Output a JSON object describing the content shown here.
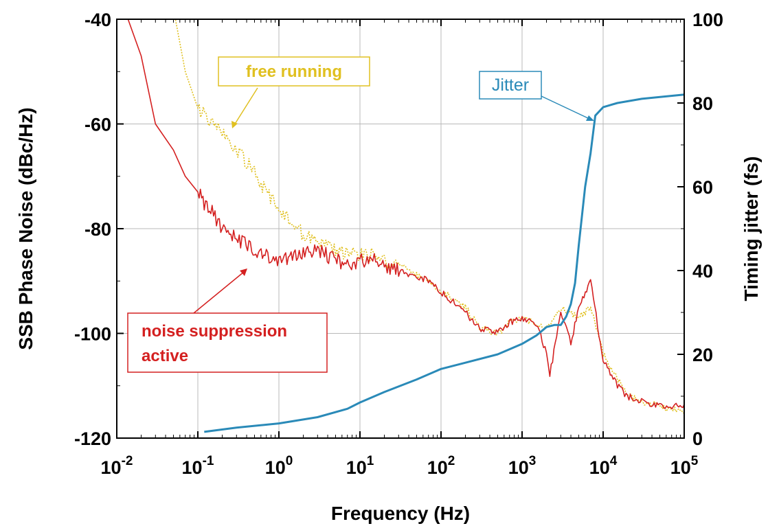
{
  "chart_data": {
    "type": "line",
    "xlabel": "Frequency (Hz)",
    "ylabel_left": "SSB Phase Noise (dBc/Hz)",
    "ylabel_right": "Timing jitter (fs)",
    "xscale": "log",
    "xlim": [
      0.01,
      100000
    ],
    "ylim_left": [
      -120,
      -40
    ],
    "ylim_right": [
      0,
      100
    ],
    "grid": true,
    "x_tick_labels": [
      {
        "base": "10",
        "exp": "-2"
      },
      {
        "base": "10",
        "exp": "-1"
      },
      {
        "base": "10",
        "exp": "0"
      },
      {
        "base": "10",
        "exp": "1"
      },
      {
        "base": "10",
        "exp": "2"
      },
      {
        "base": "10",
        "exp": "3"
      },
      {
        "base": "10",
        "exp": "4"
      },
      {
        "base": "10",
        "exp": "5"
      }
    ],
    "y_left_tick_labels": [
      "-40",
      "-60",
      "-80",
      "-100",
      "-120"
    ],
    "y_right_tick_labels": [
      "100",
      "80",
      "60",
      "40",
      "20",
      "0"
    ],
    "annotations": {
      "free_running": "free running",
      "noise_suppression_line1": "noise suppression",
      "noise_suppression_line2": "active",
      "jitter": "Jitter"
    },
    "colors": {
      "free_running": "#e0c020",
      "noise_suppression": "#d42020",
      "jitter": "#2a8ab8"
    },
    "series": [
      {
        "name": "free running",
        "axis": "left",
        "style": "dotted",
        "x": [
          0.05,
          0.07,
          0.1,
          0.2,
          0.3,
          0.5,
          0.7,
          1,
          1.5,
          2,
          3,
          5,
          7,
          10,
          15,
          20,
          30,
          50,
          70,
          100,
          200,
          300,
          500,
          700,
          1000,
          2000,
          3000,
          5000,
          7000,
          10000,
          20000,
          50000,
          100000
        ],
        "y": [
          -38,
          -50,
          -57,
          -62,
          -65,
          -69,
          -73,
          -76,
          -79,
          -81,
          -82,
          -84,
          -85,
          -85,
          -85,
          -86,
          -87,
          -89,
          -90,
          -92,
          -95,
          -99,
          -100,
          -98,
          -97,
          -99,
          -95,
          -97,
          -95,
          -104,
          -112,
          -114,
          -115
        ]
      },
      {
        "name": "noise suppression active",
        "axis": "left",
        "style": "solid",
        "x": [
          0.01,
          0.02,
          0.03,
          0.05,
          0.07,
          0.1,
          0.12,
          0.15,
          0.2,
          0.3,
          0.5,
          0.7,
          1,
          2,
          3,
          5,
          7,
          10,
          15,
          20,
          30,
          50,
          70,
          100,
          200,
          300,
          500,
          700,
          1000,
          1500,
          2000,
          2200,
          3000,
          4000,
          5000,
          7000,
          10000,
          15000,
          20000,
          50000,
          100000
        ],
        "y": [
          -34,
          -47,
          -60,
          -65,
          -70,
          -73,
          -75,
          -77,
          -80,
          -82,
          -84,
          -85,
          -86,
          -85,
          -84,
          -86,
          -87,
          -86,
          -86,
          -87,
          -88,
          -89,
          -90,
          -92,
          -96,
          -99,
          -100,
          -98,
          -97,
          -98,
          -104,
          -108,
          -96,
          -102,
          -95,
          -90,
          -105,
          -110,
          -112,
          -114,
          -114
        ]
      },
      {
        "name": "Jitter",
        "axis": "right",
        "style": "solid",
        "x": [
          0.12,
          0.3,
          1,
          3,
          7,
          10,
          20,
          50,
          100,
          200,
          500,
          1000,
          1500,
          2000,
          2500,
          3000,
          3500,
          4000,
          4500,
          5000,
          6000,
          7000,
          8000,
          10000,
          15000,
          30000,
          100000
        ],
        "y": [
          1.5,
          2.5,
          3.5,
          5,
          7,
          8.5,
          11,
          14,
          16.5,
          18,
          20,
          22.5,
          24.5,
          26.5,
          27,
          27,
          29,
          32,
          37,
          46,
          60,
          68,
          77,
          79,
          80,
          81,
          82
        ]
      }
    ]
  }
}
